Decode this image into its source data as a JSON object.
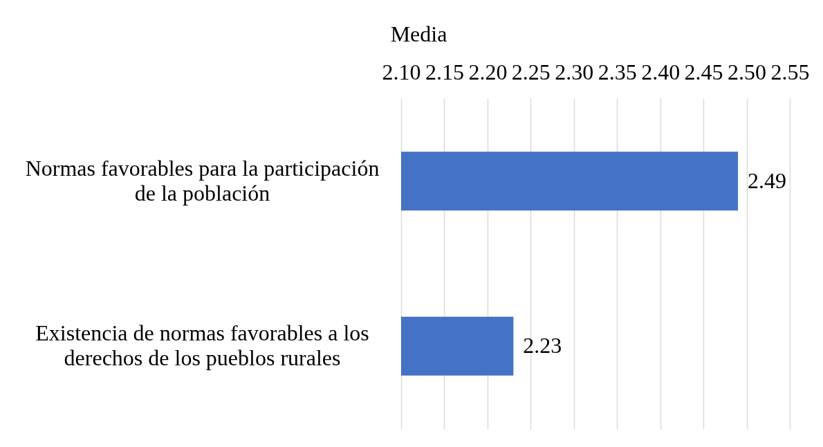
{
  "chart_data": {
    "type": "bar",
    "orientation": "horizontal",
    "categories": [
      "Normas favorables para la participación de la población",
      "Existencia de normas favorables a los derechos de los pueblos rurales"
    ],
    "values": [
      2.49,
      2.23
    ],
    "color": "#4472c4",
    "xlabel": "Media",
    "xlim": [
      2.1,
      2.55
    ],
    "xticks": [
      {
        "value": 2.1,
        "label": "2.10"
      },
      2.15,
      {
        "value": 2.2,
        "label": "2.20"
      },
      2.25,
      {
        "value": 2.3,
        "label": "2.30"
      },
      2.35,
      {
        "value": 2.4,
        "label": "2.40"
      },
      2.45,
      {
        "value": 2.5,
        "label": "2.50"
      },
      2.55
    ],
    "grid": "x",
    "data_labels": true
  }
}
